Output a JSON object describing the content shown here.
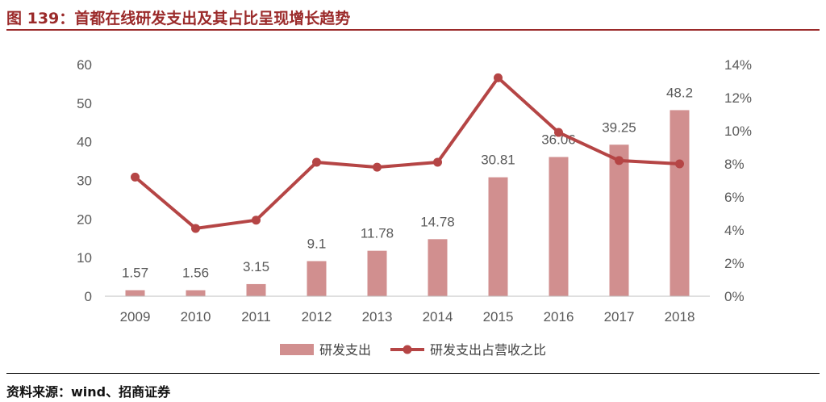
{
  "figure": {
    "title": "图 139：首都在线研发支出及其占比呈现增长趋势",
    "source": "资料来源：wind、招商证券"
  },
  "colors": {
    "title": "#9b2a2a",
    "bar": "#d18f8f",
    "line": "#b54545",
    "axis_text": "#595959"
  },
  "chart_data": {
    "type": "bar",
    "categories": [
      "2009",
      "2010",
      "2011",
      "2012",
      "2013",
      "2014",
      "2015",
      "2016",
      "2017",
      "2018"
    ],
    "series": [
      {
        "name": "研发支出",
        "type": "bar",
        "axis": "left",
        "values": [
          1.57,
          1.56,
          3.15,
          9.1,
          11.78,
          14.78,
          30.81,
          36.06,
          39.25,
          48.2
        ],
        "labels": [
          "1.57",
          "1.56",
          "3.15",
          "9.1",
          "11.78",
          "14.78",
          "30.81",
          "36.06",
          "39.25",
          "48.2"
        ]
      },
      {
        "name": "研发支出占营收之比",
        "type": "line",
        "axis": "right",
        "values": [
          7.2,
          4.1,
          4.6,
          8.1,
          7.8,
          8.1,
          13.2,
          9.9,
          8.2,
          8.0
        ]
      }
    ],
    "y_left": {
      "ylim": [
        0,
        60
      ],
      "ticks": [
        "0",
        "10",
        "20",
        "30",
        "40",
        "50",
        "60"
      ]
    },
    "y_right": {
      "ylim": [
        0,
        14
      ],
      "ticks": [
        "0%",
        "2%",
        "4%",
        "6%",
        "8%",
        "10%",
        "12%",
        "14%"
      ]
    },
    "legend_position": "bottom-center",
    "grid": false
  }
}
